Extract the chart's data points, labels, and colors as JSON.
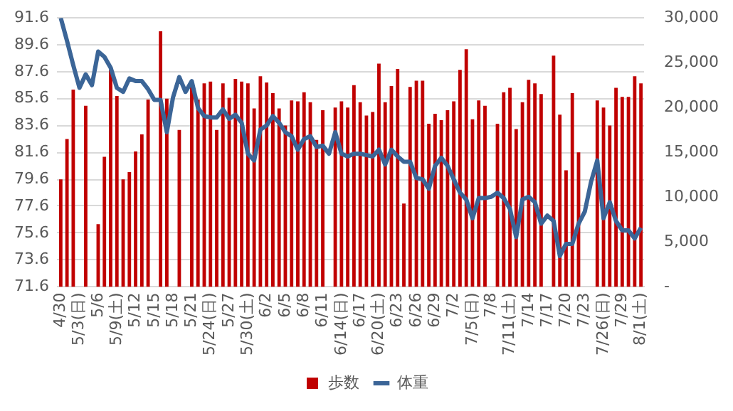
{
  "chart_data": {
    "type": "bar",
    "categories": [
      "4/30",
      null,
      null,
      "5/3(日)",
      null,
      null,
      "5/6",
      null,
      null,
      "5/9(土)",
      null,
      null,
      "5/12",
      null,
      null,
      "5/15",
      null,
      null,
      "5/18",
      null,
      null,
      "5/21",
      null,
      null,
      "5/24(日)",
      null,
      null,
      "5/27",
      null,
      null,
      "5/30(土)",
      null,
      null,
      "6/2",
      null,
      null,
      "6/5",
      null,
      null,
      "6/8",
      null,
      null,
      "6/11",
      null,
      null,
      "6/14(日)",
      null,
      null,
      "6/17",
      null,
      null,
      "6/20(土)",
      null,
      null,
      "6/23",
      null,
      null,
      "6/26",
      null,
      null,
      "6/29",
      null,
      null,
      "7/2",
      null,
      null,
      "7/5(日)",
      null,
      null,
      "7/8",
      null,
      null,
      "7/11(土)",
      null,
      null,
      "7/14",
      null,
      null,
      "7/17",
      null,
      null,
      "7/20",
      null,
      null,
      "7/23",
      null,
      null,
      "7/26(日)",
      null,
      null,
      "7/29",
      null,
      null,
      "8/1(土)"
    ],
    "series": [
      {
        "name": "歩数",
        "axis": "y2",
        "color": "#c00000",
        "values": [
          12000,
          16500,
          22000,
          null,
          20200,
          null,
          7000,
          14500,
          24200,
          21300,
          12000,
          12800,
          15100,
          17000,
          20900,
          null,
          28500,
          21000,
          null,
          17500,
          null,
          22400,
          20900,
          22700,
          22900,
          17500,
          22700,
          21100,
          23200,
          22900,
          22700,
          19900,
          23500,
          22800,
          21600,
          19900,
          18000,
          20800,
          20700,
          21700,
          20600,
          16400,
          19700,
          null,
          20000,
          20700,
          20000,
          22500,
          20600,
          19100,
          19500,
          24900,
          20600,
          22400,
          24300,
          9300,
          22300,
          23000,
          23000,
          18200,
          19300,
          18600,
          19700,
          20700,
          24200,
          26500,
          18700,
          20800,
          20200,
          null,
          18200,
          21700,
          22200,
          17600,
          20600,
          23100,
          22700,
          21500,
          null,
          25800,
          19200,
          13000,
          21600,
          15000,
          null,
          null,
          20800,
          20000,
          18000,
          22200,
          21200,
          21200,
          23500,
          22700
        ]
      },
      {
        "name": "体重",
        "type": "line",
        "axis": "y",
        "color": "#3b6597",
        "values": [
          91.6,
          89.9,
          88.1,
          86.4,
          87.4,
          86.6,
          89.1,
          88.7,
          87.9,
          86.4,
          86.1,
          87.1,
          86.9,
          86.9,
          86.3,
          85.5,
          85.5,
          83.1,
          85.7,
          87.2,
          86.1,
          86.9,
          84.9,
          84.3,
          84.2,
          84.2,
          84.8,
          84.1,
          84.4,
          83.8,
          81.5,
          81.0,
          83.3,
          83.6,
          84.3,
          83.8,
          83.1,
          82.8,
          81.8,
          82.6,
          82.8,
          82.0,
          82.1,
          81.5,
          83.1,
          81.5,
          81.3,
          81.5,
          81.5,
          81.4,
          81.3,
          81.8,
          80.7,
          81.8,
          81.3,
          80.9,
          80.9,
          79.7,
          79.6,
          78.9,
          80.6,
          81.2,
          80.6,
          79.6,
          78.6,
          78.1,
          76.7,
          78.2,
          78.2,
          78.3,
          78.6,
          78.2,
          77.4,
          75.3,
          78.1,
          78.3,
          77.9,
          76.3,
          76.9,
          76.5,
          73.9,
          74.8,
          74.8,
          76.3,
          77.2,
          79.4,
          81.0,
          76.7,
          77.9,
          76.5,
          75.8,
          75.8,
          75.2,
          76.0
        ]
      }
    ],
    "ylim": [
      71.6,
      91.6
    ],
    "yticks": [
      71.6,
      73.6,
      75.6,
      77.6,
      79.6,
      81.6,
      83.6,
      85.6,
      87.6,
      89.6,
      91.6
    ],
    "y2lim": [
      0,
      30000
    ],
    "y2ticks": [
      {
        "value": 0,
        "label": "-"
      },
      {
        "value": 5000,
        "label": "5,000"
      },
      {
        "value": 10000,
        "label": "10,000"
      },
      {
        "value": 15000,
        "label": "15,000"
      },
      {
        "value": 20000,
        "label": "20,000"
      },
      {
        "value": 25000,
        "label": "25,000"
      },
      {
        "value": 30000,
        "label": "30,000"
      }
    ],
    "grid": "y",
    "legend": "bottom"
  }
}
